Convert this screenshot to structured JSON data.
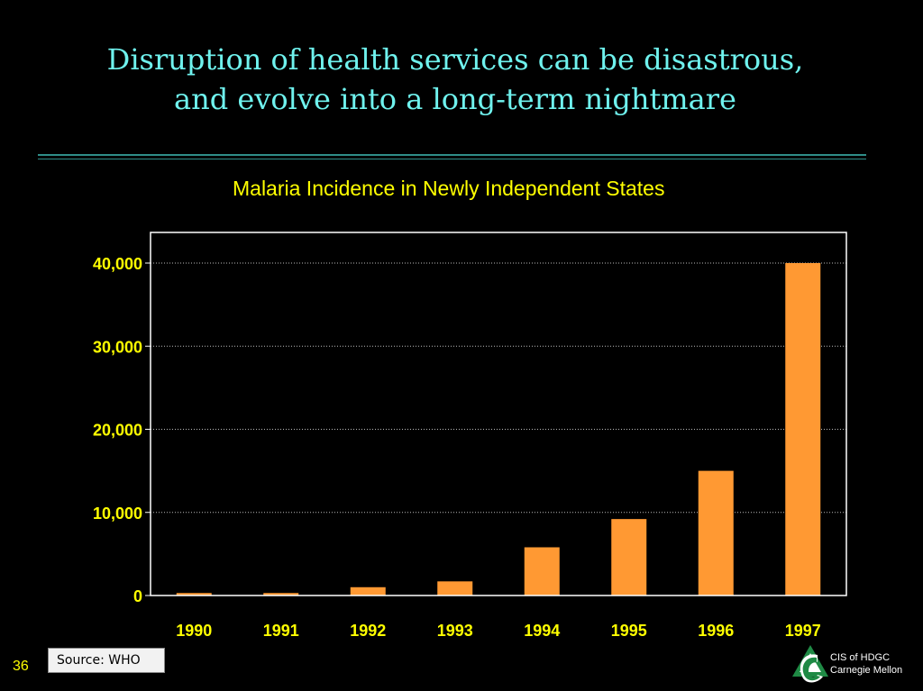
{
  "slide": {
    "title_line1": "Disruption of health services can be disastrous,",
    "title_line2": "and evolve into a long-term nightmare",
    "source": "Source: WHO",
    "page_number": "36",
    "logo_line1": "CIS of HDGC",
    "logo_line2": "Carnegie Mellon"
  },
  "colors": {
    "background": "#000000",
    "title": "#6ff2ee",
    "chart_text": "#ffff00",
    "bar": "#ff9933",
    "plot_border": "#ffffff",
    "grid": "#bbbbbb"
  },
  "chart_data": {
    "type": "bar",
    "title": "Malaria Incidence in Newly Independent States",
    "xlabel": "",
    "ylabel": "",
    "categories": [
      "1990",
      "1991",
      "1992",
      "1993",
      "1994",
      "1995",
      "1996",
      "1997"
    ],
    "values": [
      300,
      300,
      1000,
      1700,
      5800,
      9200,
      15000,
      40000
    ],
    "ylim": [
      0,
      40000
    ],
    "yticks": [
      0,
      10000,
      20000,
      30000,
      40000
    ],
    "ytick_labels": [
      "0",
      "10,000",
      "20,000",
      "30,000",
      "40,000"
    ],
    "grid": true,
    "legend": "none"
  }
}
